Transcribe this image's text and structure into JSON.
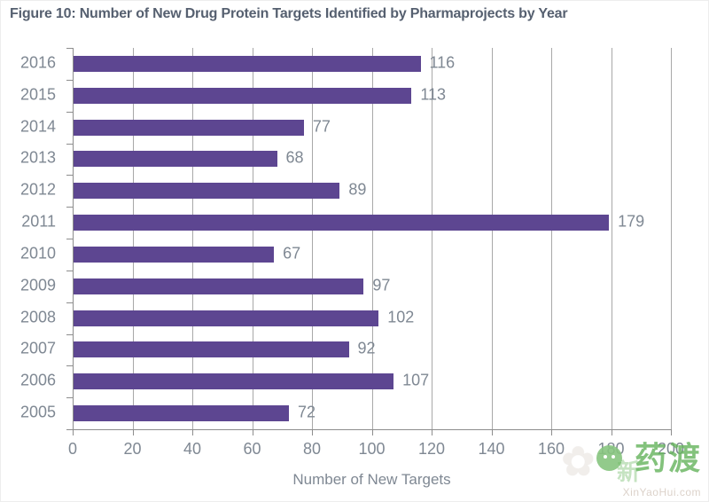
{
  "title": "Figure 10: Number of New Drug Protein Targets Identified by Pharmaprojects by Year",
  "chart_data": {
    "type": "bar",
    "orientation": "horizontal",
    "categories": [
      "2016",
      "2015",
      "2014",
      "2013",
      "2012",
      "2011",
      "2010",
      "2009",
      "2008",
      "2007",
      "2006",
      "2005"
    ],
    "values": [
      116,
      113,
      77,
      68,
      89,
      179,
      67,
      97,
      102,
      92,
      107,
      72
    ],
    "title": "Figure 10: Number of New Drug Protein Targets Identified by Pharmaprojects by Year",
    "xlabel": "Number of New Targets",
    "ylabel": "",
    "xlim": [
      0,
      200
    ],
    "xticks": [
      0,
      20,
      40,
      60,
      80,
      100,
      120,
      140,
      160,
      180,
      200
    ],
    "grid": "vertical",
    "data_labels": true,
    "legend": "none",
    "bar_color": "#5d4691"
  },
  "colors": {
    "bar": "#5d4691",
    "title_text": "#566070",
    "label_text": "#7f8893",
    "gridline": "#a8a8a8",
    "axis_line": "#8d8d8d",
    "watermark_green": "#68b45f"
  },
  "watermark": {
    "brand": "药渡",
    "faint_char": "新",
    "url": "XinYaoHui.com"
  }
}
